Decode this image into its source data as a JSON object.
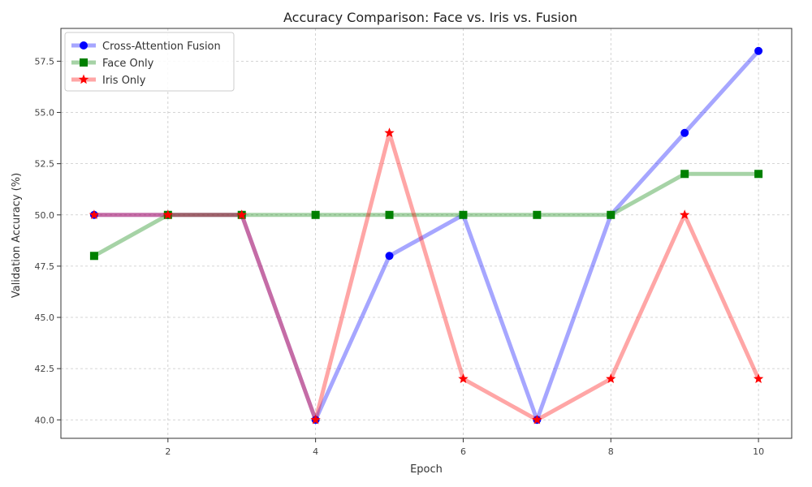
{
  "chart_data": {
    "type": "line",
    "title": "Accuracy Comparison: Face vs. Iris vs. Fusion",
    "xlabel": "Epoch",
    "ylabel": "Validation Accuracy (%)",
    "x": [
      1,
      2,
      3,
      4,
      5,
      6,
      7,
      8,
      9,
      10
    ],
    "xlim": [
      0.55,
      10.45
    ],
    "ylim": [
      39.1,
      59.1
    ],
    "xticks": [
      2,
      4,
      6,
      8,
      10
    ],
    "yticks": [
      40.0,
      42.5,
      45.0,
      47.5,
      50.0,
      52.5,
      55.0,
      57.5
    ],
    "xtick_labels": [
      "2",
      "4",
      "6",
      "8",
      "10"
    ],
    "ytick_labels": [
      "40.0",
      "42.5",
      "45.0",
      "47.5",
      "50.0",
      "52.5",
      "55.0",
      "57.5"
    ],
    "grid": true,
    "legend_position": "upper-left",
    "series": [
      {
        "name": "Cross-Attention Fusion",
        "color": "#0000ff",
        "marker": "circle",
        "values": [
          50,
          50,
          50,
          40,
          48,
          50,
          40,
          50,
          54,
          58
        ]
      },
      {
        "name": "Face Only",
        "color": "#008000",
        "marker": "square",
        "values": [
          48,
          50,
          50,
          50,
          50,
          50,
          50,
          50,
          52,
          52
        ]
      },
      {
        "name": "Iris Only",
        "color": "#ff0000",
        "marker": "star",
        "values": [
          50,
          50,
          50,
          40,
          54,
          42,
          40,
          42,
          50,
          42
        ]
      }
    ]
  }
}
